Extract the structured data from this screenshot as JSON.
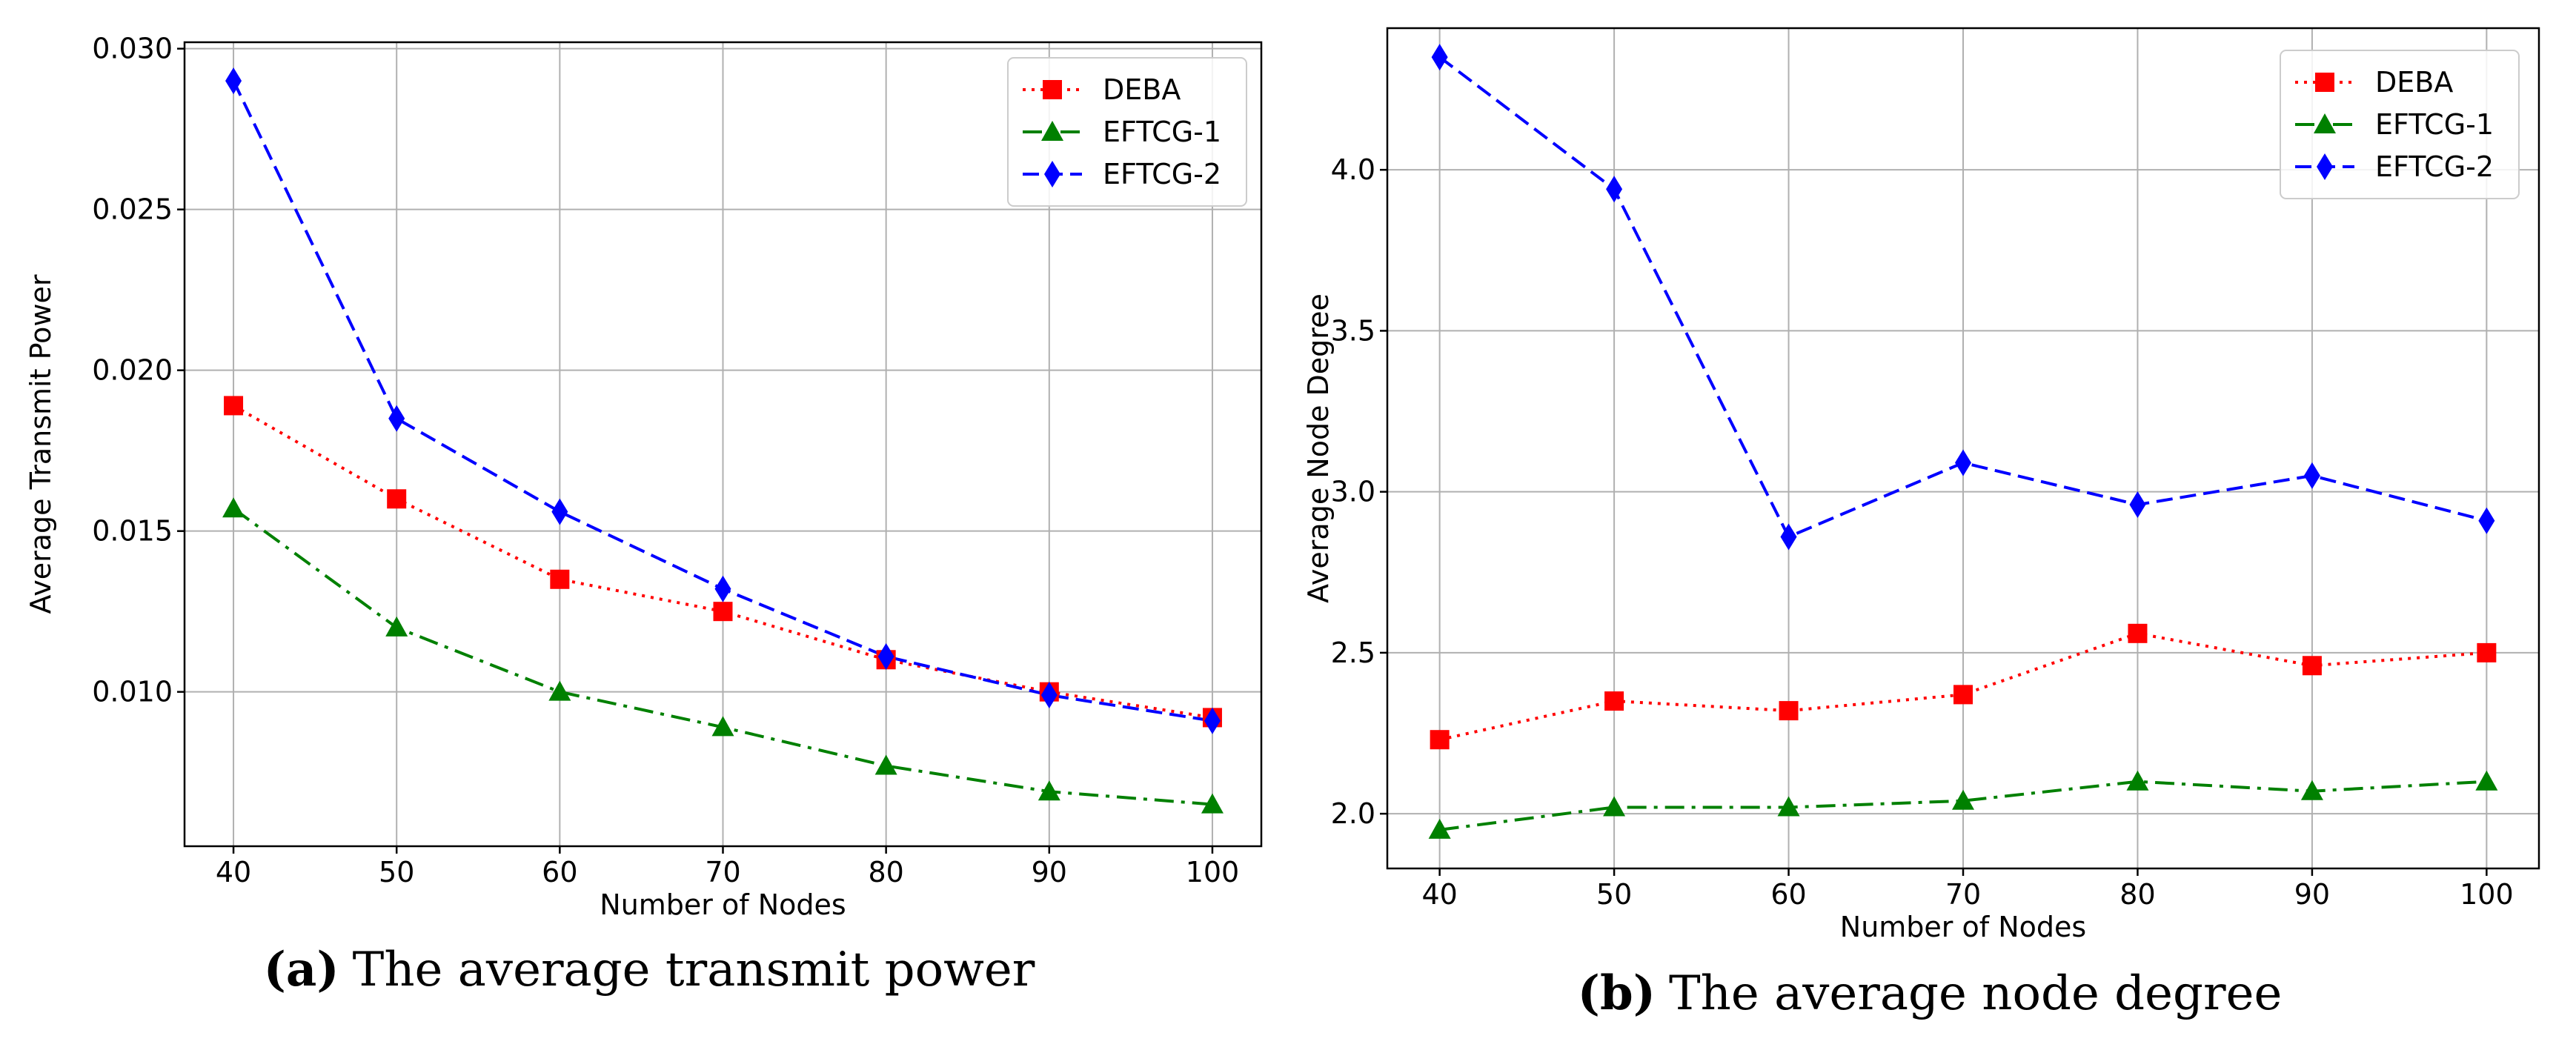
{
  "chart_data": [
    {
      "type": "line",
      "title": "",
      "xlabel": "Number of Nodes",
      "ylabel": "Average Transmit Power",
      "categories": [
        40,
        50,
        60,
        70,
        80,
        90,
        100
      ],
      "x_ticks": [
        "40",
        "50",
        "60",
        "70",
        "80",
        "90",
        "100"
      ],
      "xlim": [
        37,
        103
      ],
      "y_ticks": [
        0.01,
        0.015,
        0.02,
        0.025,
        0.03
      ],
      "y_tick_labels": [
        "0.010",
        "0.015",
        "0.020",
        "0.025",
        "0.030"
      ],
      "ylim": [
        0.0052,
        0.0302
      ],
      "grid": true,
      "legend_position": "top-right",
      "series": [
        {
          "name": "DEBA",
          "color": "#ff0000",
          "marker": "square",
          "linestyle": "dotted",
          "values": [
            0.0189,
            0.016,
            0.0135,
            0.0125,
            0.011,
            0.01,
            0.0092
          ]
        },
        {
          "name": "EFTCG-1",
          "color": "#008000",
          "marker": "triangle",
          "linestyle": "dashdot",
          "values": [
            0.0157,
            0.012,
            0.01,
            0.0089,
            0.0077,
            0.0069,
            0.0065
          ]
        },
        {
          "name": "EFTCG-2",
          "color": "#0000ff",
          "marker": "diamond",
          "linestyle": "dashed",
          "values": [
            0.029,
            0.0185,
            0.0156,
            0.0132,
            0.0111,
            0.0099,
            0.0091
          ]
        }
      ],
      "caption_label": "(a)",
      "caption_text": "The average transmit power"
    },
    {
      "type": "line",
      "title": "",
      "xlabel": "Number of Nodes",
      "ylabel": "Average Node Degree",
      "categories": [
        40,
        50,
        60,
        70,
        80,
        90,
        100
      ],
      "x_ticks": [
        "40",
        "50",
        "60",
        "70",
        "80",
        "90",
        "100"
      ],
      "xlim": [
        37,
        103
      ],
      "y_ticks": [
        2.0,
        2.5,
        3.0,
        3.5,
        4.0
      ],
      "y_tick_labels": [
        "2.0",
        "2.5",
        "3.0",
        "3.5",
        "4.0"
      ],
      "ylim": [
        1.83,
        4.44
      ],
      "grid": true,
      "legend_position": "top-right",
      "series": [
        {
          "name": "DEBA",
          "color": "#ff0000",
          "marker": "square",
          "linestyle": "dotted",
          "values": [
            2.23,
            2.35,
            2.32,
            2.37,
            2.56,
            2.46,
            2.5
          ]
        },
        {
          "name": "EFTCG-1",
          "color": "#008000",
          "marker": "triangle",
          "linestyle": "dashdot",
          "values": [
            1.95,
            2.02,
            2.02,
            2.04,
            2.1,
            2.07,
            2.1
          ]
        },
        {
          "name": "EFTCG-2",
          "color": "#0000ff",
          "marker": "diamond",
          "linestyle": "dashed",
          "values": [
            4.35,
            3.94,
            2.86,
            3.09,
            2.96,
            3.05,
            2.91
          ]
        }
      ],
      "caption_label": "(b)",
      "caption_text": "The average node degree"
    }
  ]
}
